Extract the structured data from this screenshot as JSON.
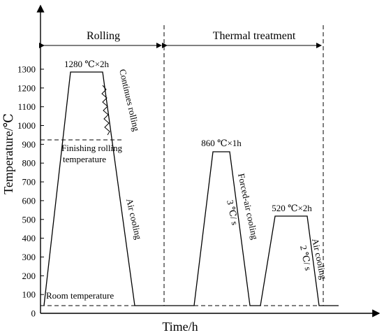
{
  "diagram": {
    "x_axis_label": "Time/h",
    "y_axis_label": "Temperature/℃",
    "y_ticks": [
      "0",
      "100",
      "200",
      "300",
      "400",
      "500",
      "600",
      "700",
      "800",
      "900",
      "1000",
      "1100",
      "1200",
      "1300"
    ],
    "sections": {
      "rolling": "Rolling",
      "thermal": "Thermal  treatment"
    },
    "labels": {
      "hold1": "1280 ℃×2h",
      "continuous_rolling": "Continues rolling",
      "finishing_1": "Finishing rolling",
      "finishing_2": "temperature",
      "air_cooling_1": "Air cooling",
      "room_temp": "Room temperature",
      "hold2": "860 ℃×1h",
      "forced_air_1": "Forced-air cooling",
      "forced_air_2": "3 ℃/ s",
      "hold3": "520 ℃×2h",
      "air_cooling_2": "Air cooling",
      "rate2": "2 ℃/ s"
    }
  }
}
